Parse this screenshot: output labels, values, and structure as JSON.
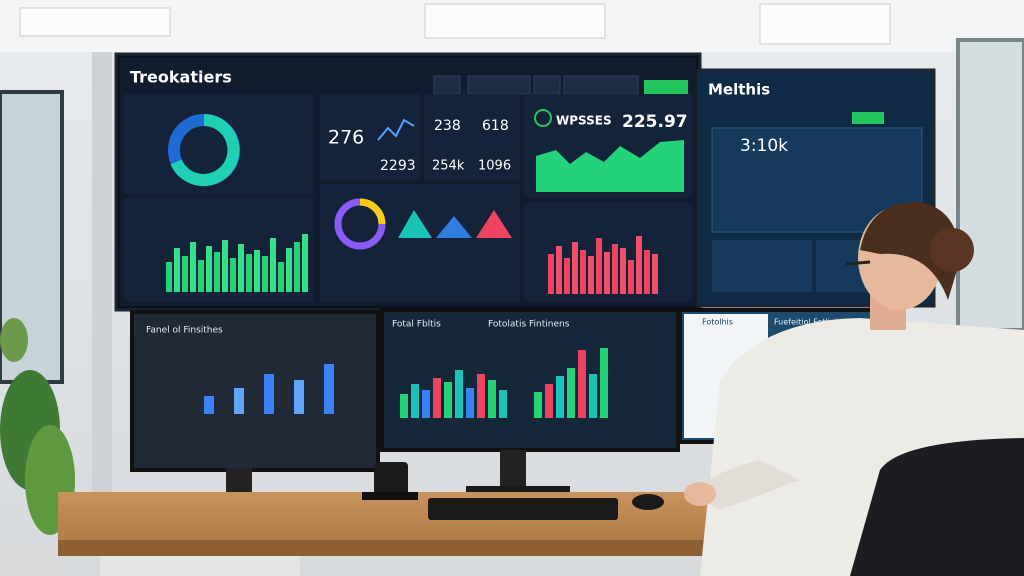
{
  "screens": {
    "main_left": {
      "title": "Treokatiers",
      "kpis": [
        "276",
        "238",
        "618",
        "2293",
        "254k",
        "1096"
      ]
    },
    "main_right": {
      "title": "Melthis",
      "ticker": "WPSSES",
      "ticker_value": "225.97",
      "big_value": "3:10k"
    },
    "lower_left": {
      "title": "Fanel ol Finsithes"
    },
    "lower_middle": {
      "title": "Fotal Fbltis",
      "subtitle": "Fotolatis Fintinens"
    },
    "lower_right": {
      "title": "Fotolhis",
      "subtitle": "Fuefeitiol Fetlinitis"
    }
  }
}
